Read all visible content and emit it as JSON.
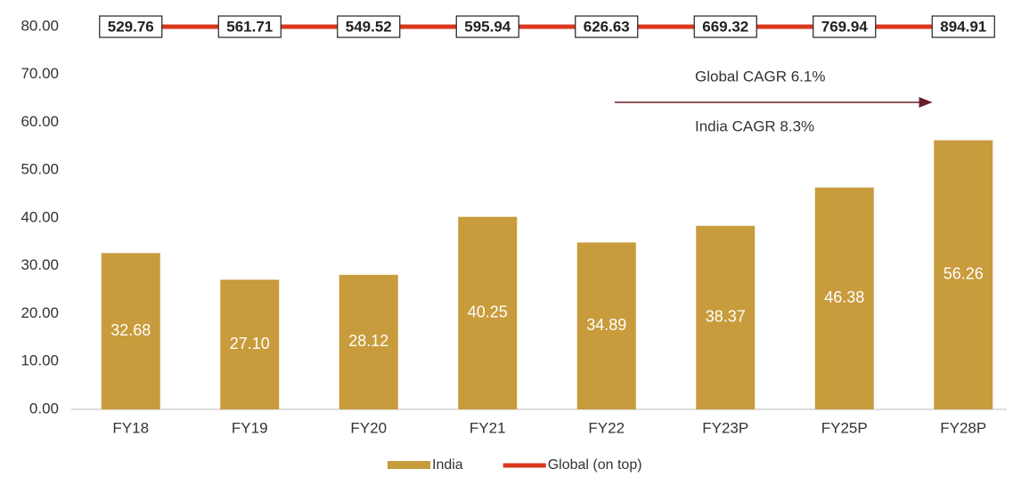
{
  "chart_data": {
    "type": "bar",
    "categories": [
      "FY18",
      "FY19",
      "FY20",
      "FY21",
      "FY22",
      "FY23P",
      "FY25P",
      "FY28P"
    ],
    "series": [
      {
        "name": "India",
        "color": "#c89b3c",
        "values": [
          32.68,
          27.1,
          28.12,
          40.25,
          34.89,
          38.37,
          46.38,
          56.26
        ],
        "value_labels": [
          "32.68",
          "27.10",
          "28.12",
          "40.25",
          "34.89",
          "38.37",
          "46.38",
          "56.26"
        ]
      },
      {
        "name": "Global (on top)",
        "color": "#d9381e",
        "type": "line",
        "values": [
          529.76,
          561.71,
          549.52,
          595.94,
          626.63,
          669.32,
          769.94,
          894.91
        ]
      }
    ],
    "ylim": [
      0,
      80
    ],
    "yticks": [
      {
        "value": 0,
        "label": "0.00"
      },
      {
        "value": 10,
        "label": "10.00"
      },
      {
        "value": 20,
        "label": "20.00"
      },
      {
        "value": 30,
        "label": "30.00"
      },
      {
        "value": 40,
        "label": "40.00"
      },
      {
        "value": 50,
        "label": "50.00"
      },
      {
        "value": 60,
        "label": "60.00"
      },
      {
        "value": 70,
        "label": "70.00"
      },
      {
        "value": 80,
        "label": "80.00"
      }
    ],
    "annotations": [
      "Global CAGR 6.1%",
      "India CAGR 8.3%"
    ],
    "grid": false,
    "legend": "bottom"
  }
}
